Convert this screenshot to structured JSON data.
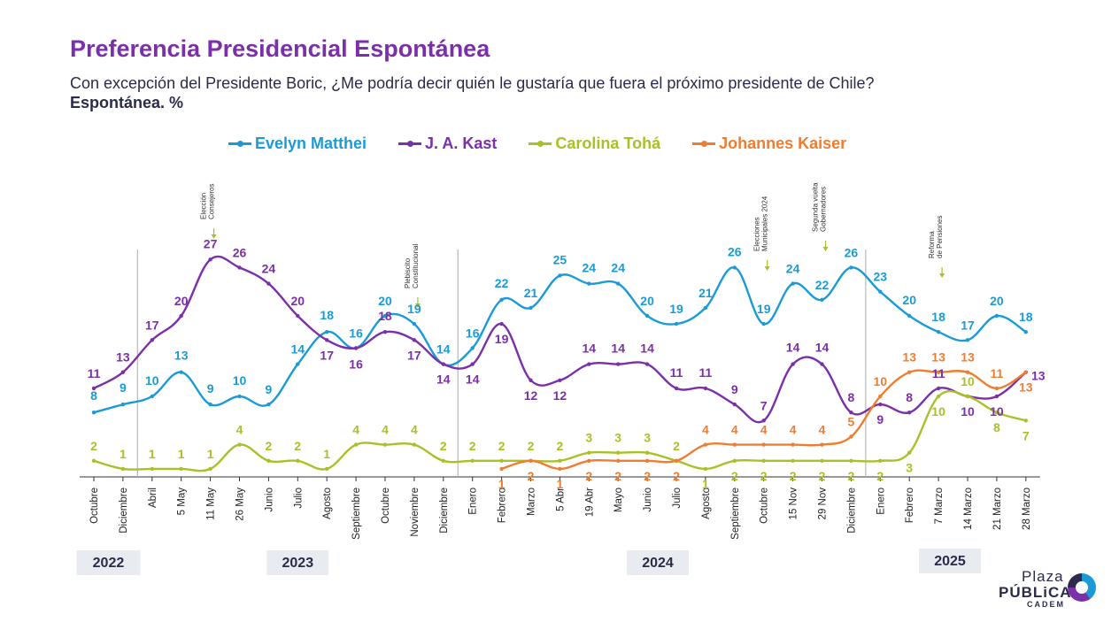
{
  "header": {
    "title": "Preferencia Presidencial Espontánea",
    "subtitle": "Con excepción del Presidente Boric, ¿Me podría decir quién le gustaría que fuera el próximo presidente de Chile?",
    "subtitle2": "Espontánea. %"
  },
  "logo": {
    "line1": "Plaza",
    "line2": "PÚBLiCA",
    "line3": "CADEM"
  },
  "chart_data": {
    "type": "line",
    "title": "Preferencia Presidencial Espontánea",
    "legend_position": "top",
    "categories": [
      "Octubre",
      "Diciembre",
      "Abril",
      "5 May",
      "11 May",
      "26 May",
      "Junio",
      "Julio",
      "Agosto",
      "Septiembre",
      "Octubre",
      "Noviembre",
      "Diciembre",
      "Enero",
      "Febrero",
      "Marzo",
      "5 Abr",
      "19 Abr",
      "Mayo",
      "Junio",
      "Julio",
      "Agosto",
      "Septiembre",
      "Octubre",
      "15 Nov",
      "29 Nov",
      "Diciembre",
      "Enero",
      "Febrero",
      "7 Marzo",
      "14 Marzo",
      "21 Marzo",
      "28 Marzo"
    ],
    "years": [
      {
        "label": "2022",
        "from": 0,
        "to": 1
      },
      {
        "label": "2023",
        "from": 2,
        "to": 12
      },
      {
        "label": "2024",
        "from": 13,
        "to": 26
      },
      {
        "label": "2025",
        "from": 27,
        "to": 32
      }
    ],
    "year_separators_after": [
      1,
      12,
      26
    ],
    "series": [
      {
        "name": "Evelyn Matthei",
        "color": "#1a9bd7",
        "values": [
          8,
          9,
          10,
          13,
          9,
          10,
          9,
          14,
          18,
          16,
          20,
          19,
          14,
          16,
          22,
          21,
          25,
          24,
          24,
          20,
          19,
          21,
          26,
          19,
          24,
          22,
          26,
          23,
          20,
          18,
          17,
          20,
          18
        ]
      },
      {
        "name": "J. A. Kast",
        "color": "#7b2fa8",
        "values": [
          11,
          13,
          17,
          20,
          27,
          26,
          24,
          20,
          17,
          16,
          18,
          17,
          14,
          14,
          19,
          12,
          12,
          14,
          14,
          14,
          11,
          11,
          9,
          7,
          14,
          14,
          8,
          9,
          8,
          11,
          10,
          10,
          13
        ]
      },
      {
        "name": "Carolina Tohá",
        "color": "#a9c127",
        "values": [
          2,
          1,
          1,
          1,
          1,
          4,
          2,
          2,
          1,
          4,
          4,
          4,
          2,
          2,
          2,
          2,
          2,
          3,
          3,
          3,
          2,
          1,
          2,
          2,
          2,
          2,
          2,
          2,
          3,
          10,
          10,
          8,
          7
        ]
      },
      {
        "name": "Johannes Kaiser",
        "color": "#ef7d31",
        "start_index": 14,
        "values": [
          null,
          null,
          null,
          null,
          null,
          null,
          null,
          null,
          null,
          null,
          null,
          null,
          null,
          null,
          1,
          2,
          1,
          2,
          2,
          2,
          2,
          4,
          4,
          4,
          4,
          4,
          5,
          10,
          13,
          13,
          13,
          11,
          13
        ]
      }
    ],
    "annotations": [
      {
        "label": "Elección Consejeros",
        "index": 4
      },
      {
        "label": "Plebiscito Constitucional",
        "index": 11
      },
      {
        "label": "Elecciones Municipales 2024",
        "index": 23
      },
      {
        "label": "Segunda vuelta Gobernadores",
        "index": 25
      },
      {
        "label": "Reforma de Pensiones",
        "index": 29
      }
    ],
    "ylim": [
      0,
      30
    ],
    "grid": false
  }
}
